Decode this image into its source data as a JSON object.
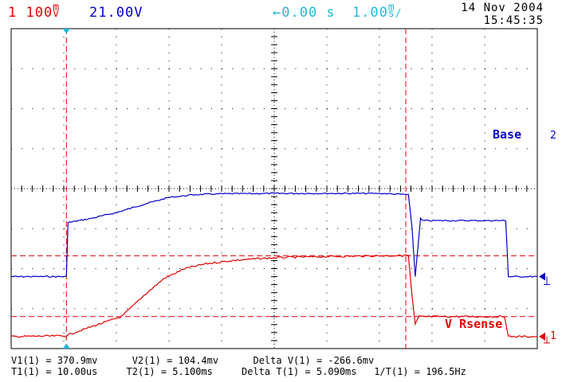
{
  "header": {
    "ch1_number": "1",
    "ch1_scale": "100",
    "ch1_unit_top": "m",
    "ch1_unit_bottom": "v",
    "ch2_number": "2",
    "ch2_scale": "1.00V",
    "trigger_arrow": "←",
    "trigger_delay": "0.00 s",
    "timebase": "1.00",
    "timebase_unit_top": "m",
    "timebase_unit_bottom": "s/",
    "date": "14 Nov 2004",
    "time": "15:45:35"
  },
  "traces": {
    "ch2_label": "Base",
    "ch1_label": "V Rsense",
    "ch2_marker": "2",
    "ch1_marker": "1"
  },
  "readouts": {
    "v1": "V1(1) = 370.9mv",
    "v2": "V2(1) = 104.4mv",
    "delta_v": "Delta V(1) = -266.6mv",
    "t1": "T1(1) = 10.00us",
    "t2": "T2(1) = 5.100ms",
    "delta_t": "Delta T(1) = 5.090ms",
    "inv_t": "1/T(1) = 196.5Hz"
  },
  "colors": {
    "ch1": "#e00000",
    "ch2": "#0000c8",
    "trigger": "#22b8d8",
    "grid": "#000000"
  },
  "chart_data": {
    "type": "line",
    "xlim": [
      0,
      10
    ],
    "grid": true,
    "series": [
      {
        "name": "Base",
        "color": "#0000c8",
        "x": [
          0,
          1.05,
          1.08,
          1.5,
          2.0,
          2.5,
          3.0,
          3.5,
          4.0,
          5.0,
          6.0,
          7.0,
          7.55,
          7.62,
          7.68,
          7.78,
          7.82,
          8.5,
          9.4,
          9.45,
          10
        ],
        "y": [
          0,
          0,
          1.35,
          1.45,
          1.6,
          1.8,
          1.98,
          2.05,
          2.07,
          2.08,
          2.08,
          2.08,
          2.05,
          1.2,
          0,
          1.45,
          1.4,
          1.4,
          1.4,
          0,
          0
        ]
      },
      {
        "name": "V Rsense",
        "color": "#e00000",
        "x": [
          0,
          1.05,
          1.2,
          1.6,
          2.1,
          2.5,
          2.9,
          3.3,
          3.7,
          4.2,
          4.7,
          5.2,
          6.0,
          7.0,
          7.55,
          7.62,
          7.68,
          7.75,
          8.5,
          9.38,
          9.45,
          10
        ],
        "y": [
          0,
          0.02,
          0.1,
          0.28,
          0.5,
          1.0,
          1.45,
          1.7,
          1.82,
          1.9,
          1.95,
          1.98,
          2.0,
          2.02,
          2.03,
          1.0,
          0.3,
          0.5,
          0.5,
          0.5,
          0,
          0
        ]
      }
    ],
    "cursors": {
      "t1_div": 1.05,
      "t2_div": 7.5,
      "v1_div": 2.02,
      "v2_div": 0.5
    }
  }
}
